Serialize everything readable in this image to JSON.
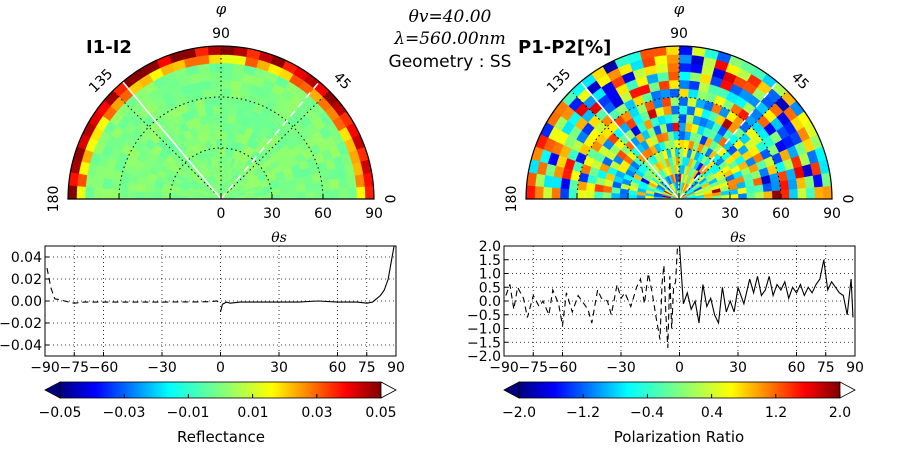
{
  "header": {
    "theta_v": "θv=40.00",
    "lambda": "λ=560.00nm",
    "geometry": "Geometry : SS"
  },
  "polar_left": {
    "title": "I1-I2",
    "phi_label": "φ",
    "angle_labels": [
      "90",
      "135",
      "45",
      "180",
      "0"
    ],
    "radial_ticks": [
      "0",
      "30",
      "60",
      "90"
    ]
  },
  "polar_right": {
    "title": "P1-P2[%]",
    "phi_label": "φ",
    "angle_labels": [
      "90",
      "135",
      "45",
      "180",
      "0"
    ],
    "radial_ticks": [
      "0",
      "30",
      "60",
      "90"
    ]
  },
  "colorbar_left": {
    "label": "Reflectance",
    "ticks": [
      "−0.05",
      "−0.03",
      "−0.01",
      "0.01",
      "0.03",
      "0.05"
    ]
  },
  "colorbar_right": {
    "label": "Polarization Ratio",
    "ticks": [
      "−2.0",
      "−1.2",
      "−0.4",
      "0.4",
      "1.2",
      "2.0"
    ]
  },
  "chart_data": [
    {
      "type": "heatmap",
      "title": "I1-I2",
      "projection": "polar (half disc)",
      "angular_label": "φ",
      "angle_ticks": [
        0,
        45,
        90,
        135,
        180
      ],
      "radial_ticks": [
        0,
        30,
        60,
        90
      ],
      "description_values": "near 0 across most of the domain; strong positive values (~0.05) along outer rim",
      "color_range": [
        -0.05,
        0.05
      ]
    },
    {
      "type": "heatmap",
      "title": "P1-P2[%]",
      "projection": "polar (half disc)",
      "angular_label": "φ",
      "angle_ticks": [
        0,
        45,
        90,
        135,
        180
      ],
      "radial_ticks": [
        0,
        30,
        60,
        90
      ],
      "color_range": [
        -2.0,
        2.0
      ]
    },
    {
      "type": "line",
      "xlabel": "θs",
      "xlim": [
        -90,
        90
      ],
      "ylim": [
        -0.05,
        0.05
      ],
      "xticks": [
        "−90",
        "−75",
        "−60",
        "−30",
        "0",
        "30",
        "60",
        "75",
        "90"
      ],
      "yticks": [
        "0.04",
        "0.02",
        "0.00",
        "−0.02",
        "−0.04"
      ],
      "grid": true,
      "series": [
        {
          "style": "dashed",
          "x": [
            -89,
            -87,
            -85,
            -82,
            -80,
            -75,
            -70,
            -60,
            -50,
            -40,
            -30,
            -20,
            -10,
            -5,
            -2,
            -1
          ],
          "y": [
            0.03,
            0.012,
            0.002,
            0.001,
            0.0,
            -0.002,
            -0.001,
            -0.001,
            -0.001,
            -0.001,
            -0.001,
            -0.0008,
            -0.0008,
            -0.0005,
            0.0,
            -0.001
          ]
        },
        {
          "style": "solid",
          "x": [
            0,
            1,
            3,
            5,
            10,
            20,
            30,
            40,
            50,
            60,
            70,
            75,
            78,
            80,
            82,
            84,
            86,
            88,
            89
          ],
          "y": [
            -0.01,
            -0.003,
            -0.001,
            -0.002,
            -0.001,
            -0.001,
            -0.001,
            -0.001,
            0.0,
            -0.001,
            -0.001,
            -0.002,
            -0.001,
            0.002,
            0.005,
            0.01,
            0.02,
            0.04,
            0.05
          ]
        }
      ]
    },
    {
      "type": "line",
      "xlabel": "θs",
      "xlim": [
        -90,
        90
      ],
      "ylim": [
        -2.0,
        2.0
      ],
      "xticks": [
        "−90",
        "−75",
        "−60",
        "−30",
        "0",
        "30",
        "60",
        "75",
        "90"
      ],
      "yticks": [
        "2.0",
        "1.5",
        "1.0",
        "0.5",
        "0.0",
        "−0.5",
        "−1.0",
        "−1.5",
        "−2.0"
      ],
      "grid": true,
      "series": [
        {
          "style": "dashed",
          "x": [
            -89,
            -87,
            -85,
            -83,
            -80,
            -78,
            -75,
            -72,
            -70,
            -67,
            -65,
            -62,
            -60,
            -58,
            -55,
            -52,
            -50,
            -47,
            -45,
            -42,
            -40,
            -37,
            -35,
            -32,
            -30,
            -28,
            -25,
            -22,
            -20,
            -18,
            -16,
            -14,
            -12,
            -10,
            -9,
            -8,
            -7,
            -6,
            -5,
            -4,
            -3,
            -2,
            -1
          ],
          "y": [
            0.2,
            0.6,
            -0.3,
            0.5,
            0.1,
            -0.6,
            0.2,
            -0.2,
            0.0,
            -0.5,
            0.4,
            -0.1,
            -0.9,
            0.3,
            -0.4,
            0.2,
            0.0,
            -0.3,
            -0.8,
            0.4,
            0.1,
            0.0,
            -0.5,
            0.6,
            0.1,
            0.3,
            -0.2,
            0.5,
            0.8,
            -0.1,
            1.0,
            0.3,
            -0.6,
            -1.4,
            0.6,
            1.3,
            -0.5,
            -1.7,
            0.9,
            -1.0,
            0.5,
            0.7,
            2.0
          ]
        },
        {
          "style": "solid",
          "x": [
            0,
            2,
            4,
            6,
            8,
            10,
            12,
            14,
            16,
            18,
            20,
            22,
            24,
            26,
            28,
            30,
            33,
            36,
            38,
            40,
            42,
            44,
            46,
            48,
            50,
            52,
            54,
            56,
            58,
            60,
            62,
            64,
            66,
            68,
            70,
            72,
            74,
            76,
            78,
            80,
            82,
            84,
            86,
            88,
            89
          ],
          "y": [
            2.0,
            -0.1,
            0.3,
            -0.3,
            0.0,
            -0.8,
            0.6,
            -0.2,
            0.1,
            -0.5,
            -0.8,
            0.5,
            -0.4,
            0.0,
            -0.4,
            0.5,
            -0.1,
            0.8,
            0.3,
            0.9,
            0.2,
            0.4,
            0.9,
            0.2,
            0.6,
            0.4,
            0.7,
            0.1,
            0.5,
            0.3,
            0.6,
            0.2,
            0.5,
            0.3,
            0.6,
            0.8,
            1.5,
            0.4,
            0.7,
            0.5,
            0.3,
            0.2,
            -0.5,
            0.8,
            -0.6
          ]
        }
      ]
    }
  ]
}
